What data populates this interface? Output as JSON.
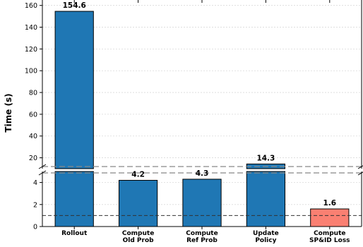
{
  "chart_data": {
    "type": "bar",
    "title": "",
    "xlabel": "",
    "ylabel": "Time (s)",
    "categories": [
      "Rollout",
      "Compute\nOld Prob",
      "Compute\nRef Prob",
      "Update\nPolicy",
      "Compute\nSP&ID Loss"
    ],
    "values": [
      154.6,
      4.2,
      4.3,
      14.3,
      1.6
    ],
    "value_labels": [
      "154.6",
      "4.2",
      "4.3",
      "14.3",
      "1.6"
    ],
    "bar_colors": [
      "#1f77b4",
      "#1f77b4",
      "#1f77b4",
      "#1f77b4",
      "#fa8072"
    ],
    "broken_axis": true,
    "upper_ylim": [
      10,
      165
    ],
    "upper_yticks": [
      20,
      40,
      60,
      80,
      100,
      120,
      140,
      160
    ],
    "lower_ylim": [
      0,
      5
    ],
    "lower_yticks": [
      0,
      2,
      4
    ],
    "reference_line_y": 1,
    "grid": true
  }
}
